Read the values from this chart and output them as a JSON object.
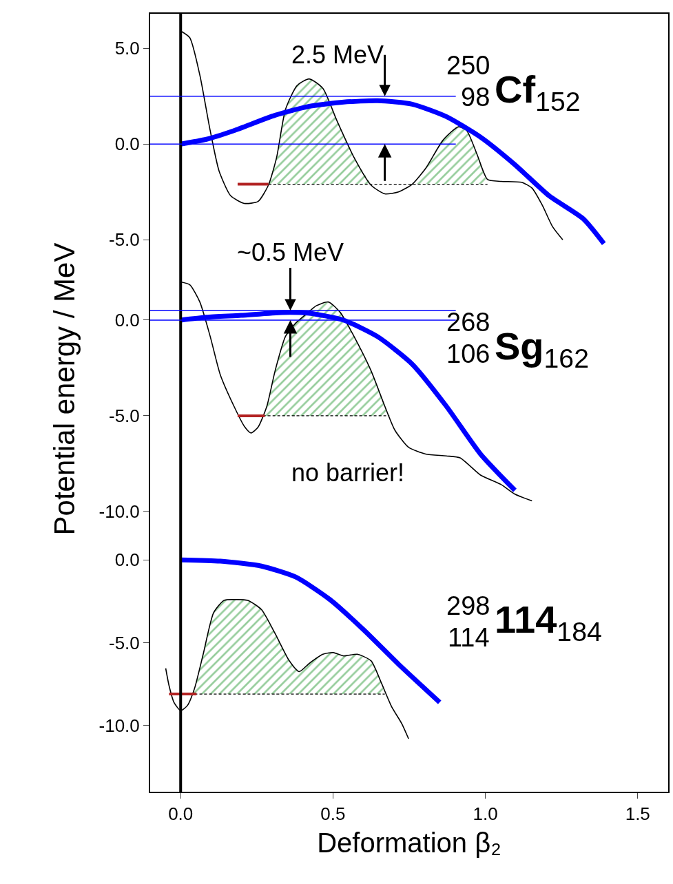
{
  "chart_data": [
    {
      "type": "line",
      "title": "$^{250}$$_{98}$Cf$_{152}$",
      "xlim": [
        -0.1,
        1.6
      ],
      "ylim": [
        -5.6,
        6.8
      ],
      "yticks": [
        {
          "value": 5,
          "label": "5.0"
        },
        {
          "value": 0,
          "label": "0.0"
        },
        {
          "value": -5,
          "label": "-5.0"
        }
      ],
      "tick_labels": "y",
      "ref_lines": [
        {
          "axis": "x",
          "value": 0,
          "color": "#000000"
        },
        {
          "axis": "y",
          "value": 2.5,
          "color": "#0000ff"
        },
        {
          "axis": "y",
          "value": 0,
          "color": "#0000ff"
        }
      ],
      "annotations": [
        {
          "text": "2.5 MeV",
          "x": 0.67,
          "y": 2.5
        }
      ],
      "series": [
        {
          "color": "#000000",
          "x": [
            0,
            0.03,
            0.063,
            0.097,
            0.126,
            0.164,
            0.209,
            0.254,
            0.288,
            0.315,
            0.344,
            0.382,
            0.422,
            0.467,
            0.512,
            0.569,
            0.625,
            0.67,
            0.715,
            0.76,
            0.805,
            0.861,
            0.912,
            0.939,
            0.973,
            1.007,
            1.052,
            1.119,
            1.153,
            1.187,
            1.22,
            1.254
          ],
          "values": [
            5.9,
            5.55,
            3.6,
            0.7,
            -1.4,
            -2.7,
            -3.1,
            -3.0,
            -2.15,
            -0.7,
            1.8,
            3.05,
            3.4,
            2.9,
            1.25,
            -0.7,
            -2.15,
            -2.6,
            -2.5,
            -2.1,
            -1.25,
            0.2,
            0.9,
            0.7,
            -0.55,
            -1.85,
            -1.95,
            -2.0,
            -2.3,
            -3.2,
            -4.3,
            -5.0
          ]
        },
        {
          "color": "#000000",
          "line_style": "dashed",
          "x": [
            0.288,
            0.315,
            0.344,
            0.382,
            0.422,
            0.467,
            0.512,
            0.569,
            0.625,
            0.67,
            0.715,
            0.76,
            0.805,
            0.861,
            0.912,
            0.939,
            0.973,
            1.007
          ],
          "values": [
            -2.1,
            -2.1,
            -2.1,
            -2.1,
            -2.1,
            -2.1,
            -2.1,
            -2.1,
            -2.1,
            -2.1,
            -2.1,
            -2.1,
            -2.1,
            -2.1,
            -2.1,
            -2.1,
            -2.1,
            -2.1
          ],
          "lower": [
            -2.1,
            -2.1,
            -2.1,
            -2.1,
            -2.1,
            -2.1,
            -2.1,
            -2.1,
            -2.1,
            -2.1,
            -2.1,
            -2.1,
            -2.1,
            -2.1,
            -2.1,
            -2.1,
            -2.1,
            -2.1
          ],
          "upper": [
            -2.1,
            -0.7,
            1.8,
            3.05,
            3.4,
            2.9,
            1.25,
            -0.7,
            -2.1,
            -2.1,
            -2.1,
            -2.1,
            -1.25,
            0.2,
            0.9,
            0.7,
            -0.55,
            -2.1
          ]
        },
        {
          "color": "#b22222",
          "x": [
            0.187,
            0.288
          ],
          "values": [
            -2.1,
            -2.1
          ]
        },
        {
          "color": "#0000ff",
          "x": [
            0,
            0.085,
            0.175,
            0.31,
            0.422,
            0.535,
            0.647,
            0.76,
            0.872,
            0.984,
            1.097,
            1.209,
            1.321,
            1.389
          ],
          "values": [
            0,
            0.25,
            0.7,
            1.5,
            1.97,
            2.19,
            2.26,
            2.08,
            1.43,
            0.36,
            -1.08,
            -2.7,
            -3.9,
            -5.2
          ]
        }
      ]
    },
    {
      "type": "line",
      "title": "$^{268}$$_{106}$Sg$_{162}$",
      "ylabel": "Potential energy / MeV",
      "xlim": [
        -0.1,
        1.6
      ],
      "ylim": [
        -10.8,
        3.6
      ],
      "yticks": [
        {
          "value": 0,
          "label": "0.0"
        },
        {
          "value": -5,
          "label": "-5.0"
        },
        {
          "value": -10,
          "label": "-10.0"
        }
      ],
      "tick_labels": "y",
      "ref_lines": [
        {
          "axis": "x",
          "value": 0,
          "color": "#000000"
        },
        {
          "axis": "y",
          "value": 0.5,
          "color": "#0000ff"
        },
        {
          "axis": "y",
          "value": 0,
          "color": "#0000ff"
        }
      ],
      "annotations": [
        {
          "text": "~0.5 MeV",
          "x": 0.36,
          "y": 0.5
        },
        "no barrier!"
      ],
      "series": [
        {
          "color": "#000000",
          "x": [
            0,
            0.03,
            0.063,
            0.097,
            0.13,
            0.175,
            0.209,
            0.231,
            0.254,
            0.283,
            0.31,
            0.344,
            0.378,
            0.411,
            0.445,
            0.485,
            0.524,
            0.569,
            0.625,
            0.67,
            0.703,
            0.748,
            0.804,
            0.872,
            0.917,
            0.984,
            1.052,
            1.097,
            1.153
          ],
          "values": [
            2.0,
            1.85,
            0.95,
            -0.85,
            -2.85,
            -4.5,
            -5.55,
            -5.9,
            -5.6,
            -4.5,
            -2.65,
            -0.85,
            -0.15,
            0.3,
            0.75,
            0.95,
            0.4,
            -0.85,
            -2.65,
            -4.5,
            -5.75,
            -6.65,
            -7.0,
            -7.1,
            -7.2,
            -8.1,
            -8.6,
            -9.1,
            -9.45
          ]
        },
        {
          "color": "#000000",
          "line_style": "dashed",
          "x": [
            0.27,
            0.283,
            0.31,
            0.344,
            0.378,
            0.411,
            0.445,
            0.485,
            0.524,
            0.569,
            0.625,
            0.67,
            0.685
          ],
          "values": [
            -5.0,
            -5.0,
            -5.0,
            -5.0,
            -5.0,
            -5.0,
            -5.0,
            -5.0,
            -5.0,
            -5.0,
            -5.0,
            -5.0,
            -5.0
          ],
          "lower": [
            -5.0,
            -5.0,
            -5.0,
            -5.0,
            -5.0,
            -5.0,
            -5.0,
            -5.0,
            -5.0,
            -5.0,
            -5.0,
            -5.0,
            -5.0
          ],
          "upper": [
            -5.0,
            -4.5,
            -2.65,
            -0.85,
            -0.15,
            0.3,
            0.75,
            0.95,
            0.4,
            -0.85,
            -2.65,
            -4.5,
            -5.0
          ]
        },
        {
          "color": "#b22222",
          "x": [
            0.187,
            0.276
          ],
          "values": [
            -5.0,
            -5.0
          ]
        },
        {
          "color": "#0000ff",
          "x": [
            0,
            0.085,
            0.198,
            0.333,
            0.422,
            0.535,
            0.647,
            0.76,
            0.872,
            0.984,
            1.097
          ],
          "values": [
            0,
            0.15,
            0.25,
            0.4,
            0.36,
            0,
            -0.87,
            -2.3,
            -4.5,
            -7.0,
            -8.9
          ]
        }
      ]
    },
    {
      "type": "line",
      "title": "$^{298}$$_{114}$114$_{184}$",
      "xlabel": "Deformation β₂",
      "xlim": [
        -0.1,
        1.6
      ],
      "xticks": [
        {
          "value": 0,
          "label": "0.0"
        },
        {
          "value": 0.5,
          "label": "0.5"
        },
        {
          "value": 1,
          "label": "1.0"
        },
        {
          "value": 1.5,
          "label": "1.5"
        }
      ],
      "ylim": [
        -14,
        2
      ],
      "yticks": [
        {
          "value": 0,
          "label": "0.0"
        },
        {
          "value": -5,
          "label": "-5.0"
        },
        {
          "value": -10,
          "label": "-10.0"
        }
      ],
      "ref_lines": [
        {
          "axis": "x",
          "value": 0,
          "color": "#000000"
        }
      ],
      "series": [
        {
          "color": "#000000",
          "x": [
            -0.049,
            -0.038,
            -0.022,
            0,
            0.022,
            0.045,
            0.074,
            0.108,
            0.142,
            0.175,
            0.22,
            0.265,
            0.31,
            0.355,
            0.389,
            0.422,
            0.467,
            0.501,
            0.535,
            0.58,
            0.625,
            0.658,
            0.692,
            0.726,
            0.748
          ],
          "values": [
            -6.55,
            -7.6,
            -8.6,
            -9.1,
            -8.8,
            -7.8,
            -5.7,
            -3.2,
            -2.45,
            -2.4,
            -2.45,
            -3.0,
            -4.45,
            -6.05,
            -6.75,
            -6.25,
            -5.7,
            -5.6,
            -5.8,
            -5.7,
            -6.1,
            -7.4,
            -8.85,
            -9.9,
            -10.8
          ]
        },
        {
          "color": "#000000",
          "line_style": "dashed",
          "x": [
            0.03,
            0.045,
            0.074,
            0.108,
            0.142,
            0.175,
            0.22,
            0.265,
            0.31,
            0.355,
            0.389,
            0.422,
            0.467,
            0.501,
            0.535,
            0.58,
            0.625,
            0.658,
            0.67
          ],
          "values": [
            -8.1,
            -8.1,
            -8.1,
            -8.1,
            -8.1,
            -8.1,
            -8.1,
            -8.1,
            -8.1,
            -8.1,
            -8.1,
            -8.1,
            -8.1,
            -8.1,
            -8.1,
            -8.1,
            -8.1,
            -8.1,
            -8.1
          ],
          "lower": [
            -8.1,
            -8.1,
            -8.1,
            -8.1,
            -8.1,
            -8.1,
            -8.1,
            -8.1,
            -8.1,
            -8.1,
            -8.1,
            -8.1,
            -8.1,
            -8.1,
            -8.1,
            -8.1,
            -8.1,
            -8.1,
            -8.1
          ],
          "upper": [
            -8.1,
            -7.8,
            -5.7,
            -3.2,
            -2.45,
            -2.4,
            -2.45,
            -3.0,
            -4.45,
            -6.05,
            -6.75,
            -6.25,
            -5.7,
            -5.6,
            -5.8,
            -5.7,
            -6.1,
            -7.4,
            -8.1
          ]
        },
        {
          "color": "#b22222",
          "x": [
            -0.038,
            0.052
          ],
          "values": [
            -8.1,
            -8.1
          ]
        },
        {
          "color": "#0000ff",
          "x": [
            0,
            0.13,
            0.265,
            0.378,
            0.49,
            0.602,
            0.715,
            0.85
          ],
          "values": [
            0,
            -0.08,
            -0.38,
            -1.04,
            -2.4,
            -4.25,
            -6.3,
            -8.6
          ]
        }
      ]
    }
  ]
}
